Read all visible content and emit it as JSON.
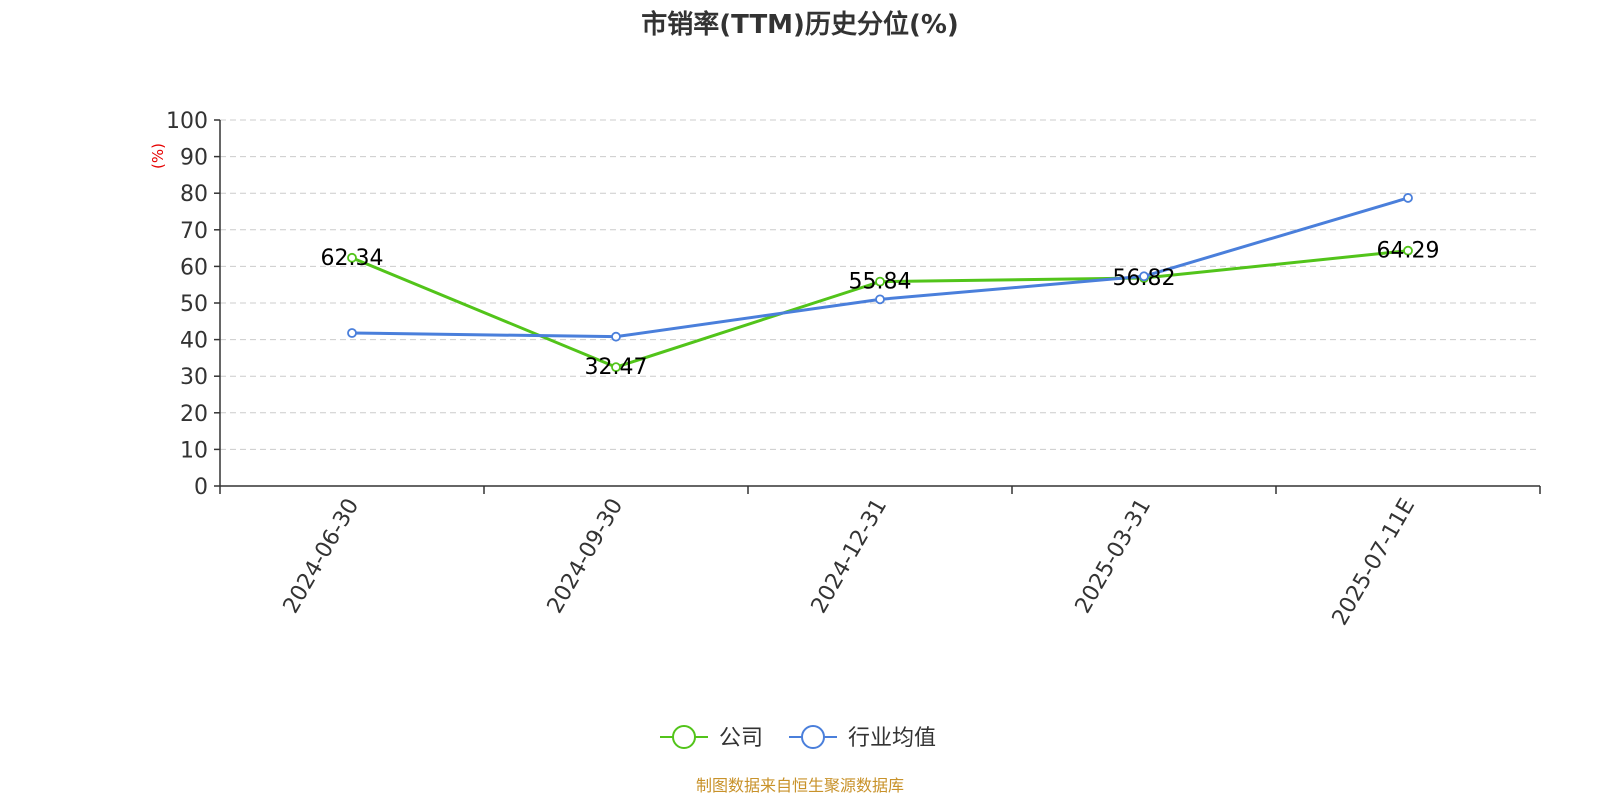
{
  "chart_data": {
    "type": "line",
    "title": "市销率(TTM)历史分位(%)",
    "ylabel": "(%)",
    "xlabel": "",
    "categories": [
      "2024-06-30",
      "2024-09-30",
      "2024-12-31",
      "2025-03-31",
      "2025-07-11E"
    ],
    "ylim": [
      0,
      100
    ],
    "yticks": [
      "0",
      "10",
      "20",
      "30",
      "40",
      "50",
      "60",
      "70",
      "80",
      "90",
      "100"
    ],
    "grid": true,
    "legend_position": "bottom-center",
    "series": [
      {
        "name": "公司",
        "color": "#52c41a",
        "values": [
          62.34,
          32.47,
          55.84,
          56.82,
          64.29
        ],
        "labels": [
          "62.34",
          "32.47",
          "55.84",
          "56.82",
          "64.29"
        ]
      },
      {
        "name": "行业均值",
        "color": "#4a7fdb",
        "values": [
          41.8,
          40.8,
          51.0,
          57.3,
          78.7
        ]
      }
    ]
  },
  "footer": {
    "source": "制图数据来自恒生聚源数据库"
  },
  "colors": {
    "title": "#333333",
    "axis": "#333333",
    "grid": "#cccccc",
    "ylabel": "#e60000",
    "source": "#c8922a"
  }
}
